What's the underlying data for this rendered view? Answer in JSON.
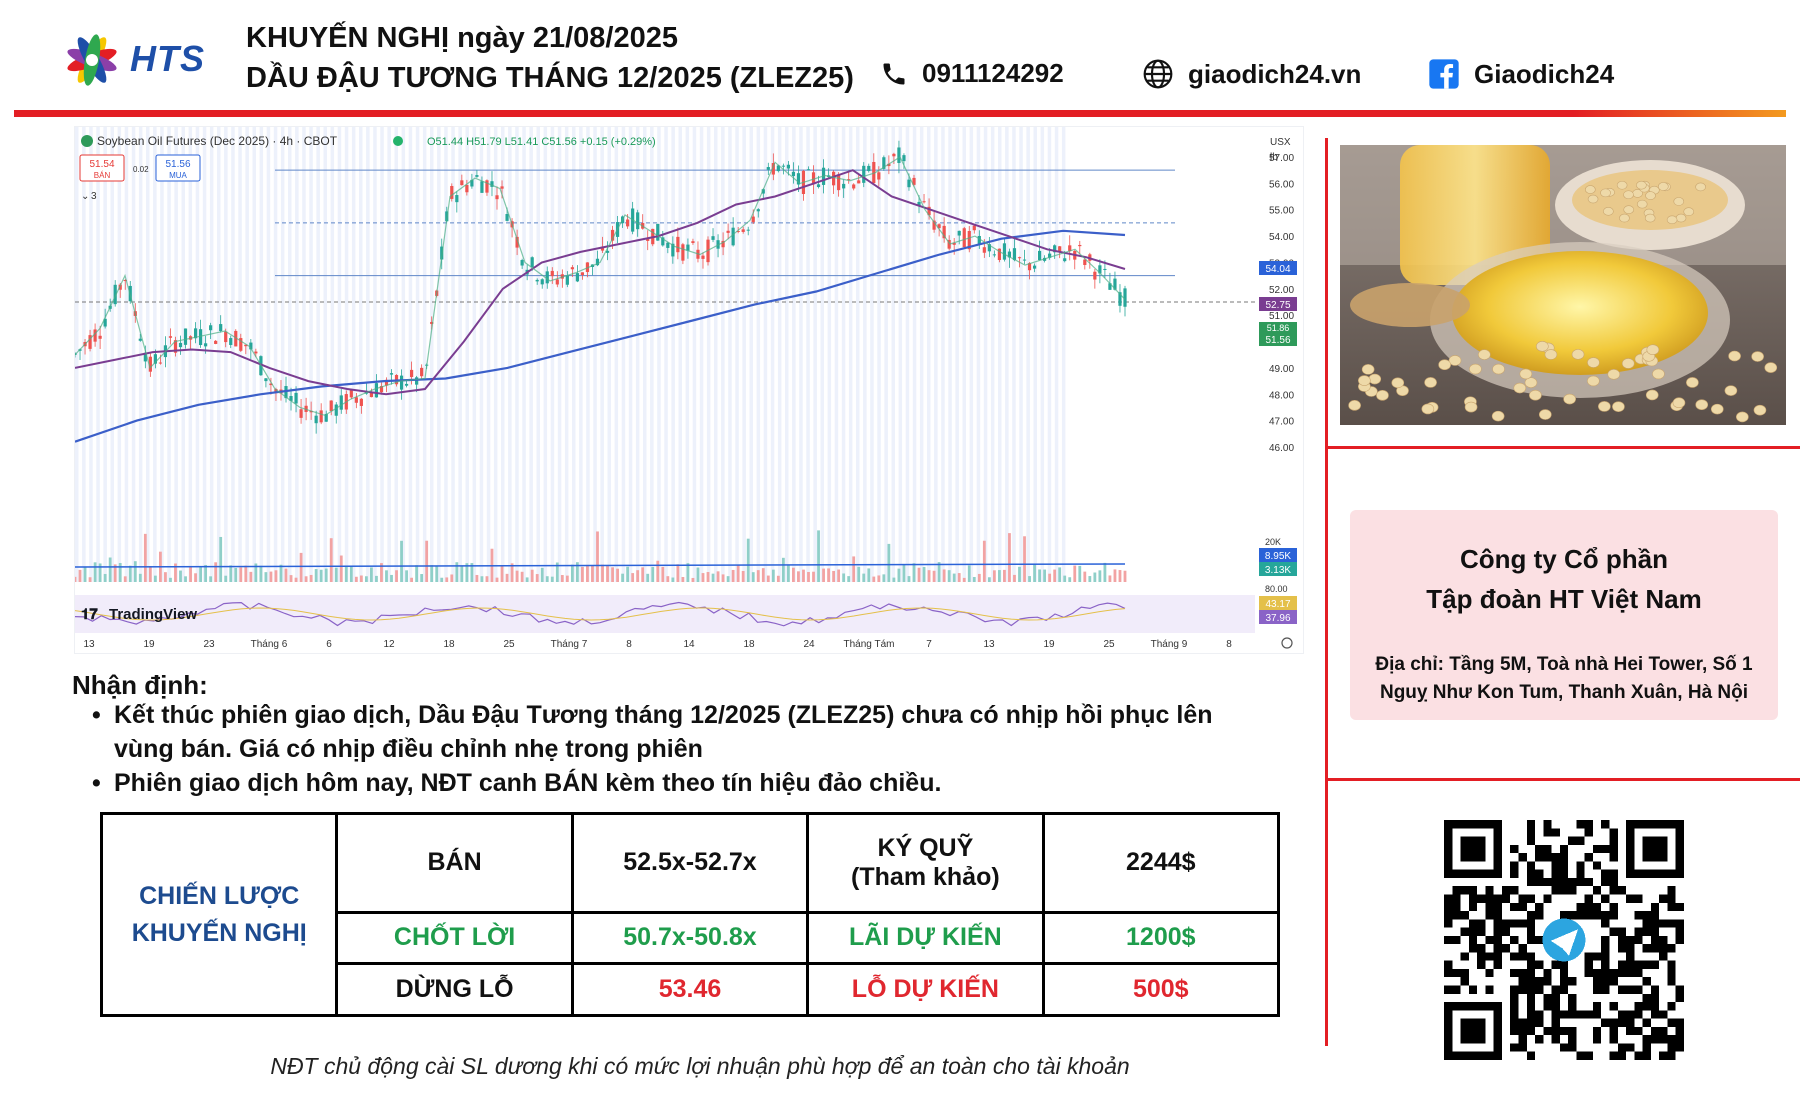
{
  "header": {
    "logo_text": "HTS",
    "title_line1": "KHUYẾN NGHỊ ngày 21/08/2025",
    "title_line2": "DẦU ĐẬU TƯƠNG THÁNG 12/2025 (ZLEZ25)",
    "phone": "0911124292",
    "website": "giaodich24.vn",
    "facebook": "Giaodich24",
    "icons": [
      "phone-icon",
      "globe-icon",
      "facebook-icon"
    ]
  },
  "chart": {
    "symbol_line": "Soybean Oil Futures (Dec 2025) · 4h · CBOT",
    "ohlc": "O51.44 H51.79 L51.41 C51.56 +0.15 (+0.29%)",
    "sell_price": "51.54",
    "sell_label": "BÁN",
    "spread": "0.02",
    "buy_price": "51.56",
    "buy_label": "MUA",
    "indicator_count": "3",
    "currency": "USX",
    "unit": "lb",
    "brand": "TradingView",
    "badges": {
      "ma_top": "54.04",
      "ma_mid": "52.75",
      "price_a": "51.86",
      "price_b": "51.56",
      "vol_a": "8.95K",
      "vol_b": "3.13K",
      "rsi_a": "43.17",
      "rsi_b": "37.96"
    },
    "vol_axis_label": "20K",
    "rsi_axis_label": "80.00"
  },
  "chart_data": {
    "type": "line",
    "title": "Soybean Oil Futures (Dec 2025) · 4h · CBOT",
    "y_ticks": [
      "57.00",
      "56.00",
      "55.00",
      "54.00",
      "53.00",
      "52.00",
      "51.00",
      "50.00",
      "49.00",
      "48.00",
      "47.00",
      "46.00"
    ],
    "ylim": [
      46,
      57
    ],
    "x_ticks": [
      "13",
      "19",
      "23",
      "Tháng 6",
      "6",
      "12",
      "18",
      "25",
      "Tháng 7",
      "8",
      "14",
      "18",
      "24",
      "Tháng Tám",
      "7",
      "13",
      "19",
      "25",
      "Tháng 9",
      "8"
    ],
    "series": [
      {
        "values": [
          49.5,
          50.5,
          52.5,
          49.0,
          50.0,
          50.2,
          50.4,
          49.8,
          48.2,
          47.5,
          47.2,
          47.8,
          48.2,
          48.5,
          48.6,
          55.5,
          56.2,
          55.8,
          53.0,
          52.3,
          52.6,
          53.0,
          54.8,
          54.2,
          53.6,
          53.3,
          53.8,
          54.6,
          56.8,
          56.0,
          56.3,
          56.1,
          56.4,
          57.0,
          55.0,
          53.7,
          54.0,
          53.4,
          52.9,
          53.2,
          53.5,
          52.6,
          51.6
        ]
      },
      {
        "values": [
          49.0,
          49.3,
          49.6,
          49.7,
          49.6,
          49.0,
          48.5,
          48.2,
          48.0,
          48.2,
          50.0,
          52.0,
          53.0,
          53.4,
          53.7,
          54.0,
          54.5,
          55.2,
          55.5,
          56.0,
          56.5,
          55.5,
          55.0,
          54.5,
          54.0,
          53.5,
          53.2,
          52.75
        ]
      },
      {
        "values": [
          46.2,
          47.0,
          47.6,
          48.0,
          48.3,
          48.5,
          48.6,
          49.0,
          49.6,
          50.2,
          50.8,
          51.4,
          51.9,
          52.6,
          53.3,
          53.9,
          54.2,
          54.04
        ]
      }
    ],
    "horizontal_levels": [
      56.5,
      54.5,
      52.5,
      51.5
    ],
    "volume_axis": [
      "20K"
    ],
    "rsi_axis": [
      "80.00"
    ]
  },
  "analysis": {
    "heading": "Nhận định:",
    "bullets": [
      {
        "line1": "Kết thúc phiên giao dịch, Dầu Đậu Tương tháng 12/2025 (ZLEZ25) chưa có nhịp hồi phục lên",
        "line2": "vùng bán. Giá có nhịp điều chỉnh nhẹ trong phiên"
      },
      {
        "line1": "Phiên giao dịch hôm nay, NĐT canh BÁN kèm theo tín hiệu đảo chiều.",
        "line2": ""
      }
    ]
  },
  "strategy": {
    "label_line1": "CHIẾN LƯỢC",
    "label_line2": "KHUYẾN NGHỊ",
    "rows": [
      {
        "action": "BÁN",
        "range": "52.5x-52.7x",
        "metric_line1": "KÝ QUỸ",
        "metric_line2": "(Tham khảo)",
        "amount": "2244$"
      },
      {
        "action": "CHỐT LỜI",
        "range": "50.7x-50.8x",
        "metric_line1": "LÃI DỰ KIẾN",
        "metric_line2": "",
        "amount": "1200$"
      },
      {
        "action": "DỪNG LỖ",
        "range": "53.46",
        "metric_line1": "LỖ DỰ KIẾN",
        "metric_line2": "",
        "amount": "500$"
      }
    ],
    "colors": {
      "label": "#1d4b8f",
      "profit": "#1f9d4c",
      "loss": "#e0272f"
    }
  },
  "company": {
    "line1": "Công ty Cổ phần",
    "line2": "Tập đoàn HT Việt Nam",
    "address_line1": "Địa chỉ: Tầng 5M, Toà nhà Hei Tower, Số 1",
    "address_line2": "Nguỵ Như Kon Tum, Thanh Xuân, Hà Nội"
  },
  "footnote": "NĐT chủ động cài SL dương khi có mức lợi nhuận phù hợp để an toàn cho tài khoản",
  "colors": {
    "accent_red": "#e31e24",
    "brand_blue": "#1e4fa8"
  }
}
